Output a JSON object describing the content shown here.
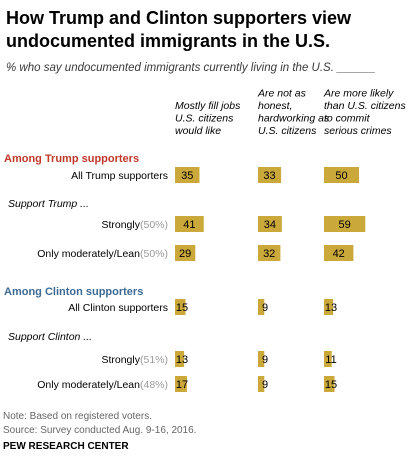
{
  "title_lines": [
    "How Trump and Clinton supporters view",
    "undocumented  immigrants in the U.S."
  ],
  "subtitle": "% who say undocumented immigrants currently living in the U.S. ______",
  "chart_data": {
    "type": "bar",
    "title": "How Trump and Clinton supporters view undocumented immigrants in the U.S.",
    "subtitle": "% who say undocumented immigrants currently living in the U.S. ______",
    "categories": [
      "Mostly fill jobs U.S. citizens would like",
      "Are not as honest, hardworking as U.S. citizens",
      "Are more likely than U.S. citizens to commit serious crimes"
    ],
    "category_label_lines": [
      [
        "Mostly fill jobs",
        "U.S. citizens",
        "would like"
      ],
      [
        "Are not as",
        "honest,",
        "hardworking as",
        "U.S. citizens"
      ],
      [
        "Are more likely",
        "than U.S. citizens",
        "to commit",
        "serious crimes"
      ]
    ],
    "ylim": [
      0,
      100
    ],
    "bar_color": "#cba83a",
    "groups": [
      {
        "heading": "Among Trump supporters",
        "heading_color": "#c0392b",
        "rows": [
          {
            "label": "All Trump supporters",
            "pct": "",
            "values": [
              35,
              33,
              50
            ]
          }
        ]
      },
      {
        "heading": "Support Trump ...",
        "heading_color": "#000000",
        "rows": [
          {
            "label": "Strongly",
            "pct": "(50%)",
            "values": [
              41,
              34,
              59
            ]
          },
          {
            "label": "Only moderately/Lean",
            "pct": "(50%)",
            "values": [
              29,
              32,
              42
            ]
          }
        ]
      },
      {
        "heading": "Among Clinton supporters",
        "heading_color": "#3c6a93",
        "rows": [
          {
            "label": "All Clinton supporters",
            "pct": "",
            "values": [
              15,
              9,
              13
            ]
          }
        ]
      },
      {
        "heading": "Support Clinton ...",
        "heading_color": "#000000",
        "rows": [
          {
            "label": "Strongly",
            "pct": "(51%)",
            "values": [
              13,
              9,
              11
            ]
          },
          {
            "label": "Only moderately/Lean",
            "pct": "(48%)",
            "values": [
              17,
              9,
              15
            ]
          }
        ]
      }
    ]
  },
  "notes": {
    "note": "Note: Based on registered voters.",
    "source": "Source: Survey conducted Aug. 9-16, 2016.",
    "org": "PEW RESEARCH CENTER"
  }
}
